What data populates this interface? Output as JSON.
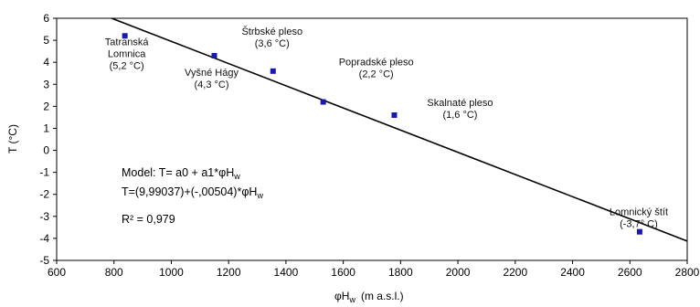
{
  "chart_data": {
    "type": "scatter",
    "xlabel": "φH",
    "xlabel_sub": "w",
    "xlabel_unit": "(m a.s.l.)",
    "ylabel": "T   (°C)",
    "xlim": [
      600,
      2800
    ],
    "ylim": [
      -5,
      6
    ],
    "xticks": [
      600,
      800,
      1000,
      1200,
      1400,
      1600,
      1800,
      2000,
      2200,
      2400,
      2600,
      2800
    ],
    "yticks": [
      -5,
      -4,
      -3,
      -2,
      -1,
      0,
      1,
      2,
      3,
      4,
      5,
      6
    ],
    "marker_color": "#1a1aa6",
    "line_color": "#000000",
    "points": [
      {
        "x": 838,
        "y": 5.2,
        "label": [
          "Tatranská",
          "Lomnica",
          "(5,2 °C)"
        ]
      },
      {
        "x": 1150,
        "y": 4.3,
        "label": [
          "Vyšné Hágy",
          "(4,3 °C)"
        ]
      },
      {
        "x": 1355,
        "y": 3.6,
        "label": [
          "Štrbské pleso",
          "(3,6 °C)"
        ]
      },
      {
        "x": 1530,
        "y": 2.2,
        "label": [
          "Popradské pleso",
          "(2,2 °C)"
        ]
      },
      {
        "x": 1778,
        "y": 1.6,
        "label": [
          "Skalnaté pleso",
          "(1,6 °C)"
        ]
      },
      {
        "x": 2634,
        "y": -3.7,
        "label": [
          "Lomnický štít",
          "(-3,7° C)"
        ]
      }
    ],
    "fit": {
      "a0": 9.99037,
      "a1": -0.00504
    },
    "model_text": {
      "line1_prefix": "Model: T= a0 + a1*φH",
      "line1_sub": "w",
      "line2_prefix": "T=(9,99037)+(-,00504)*φH",
      "line2_sub": "w",
      "r2": "R² = 0,979"
    }
  }
}
